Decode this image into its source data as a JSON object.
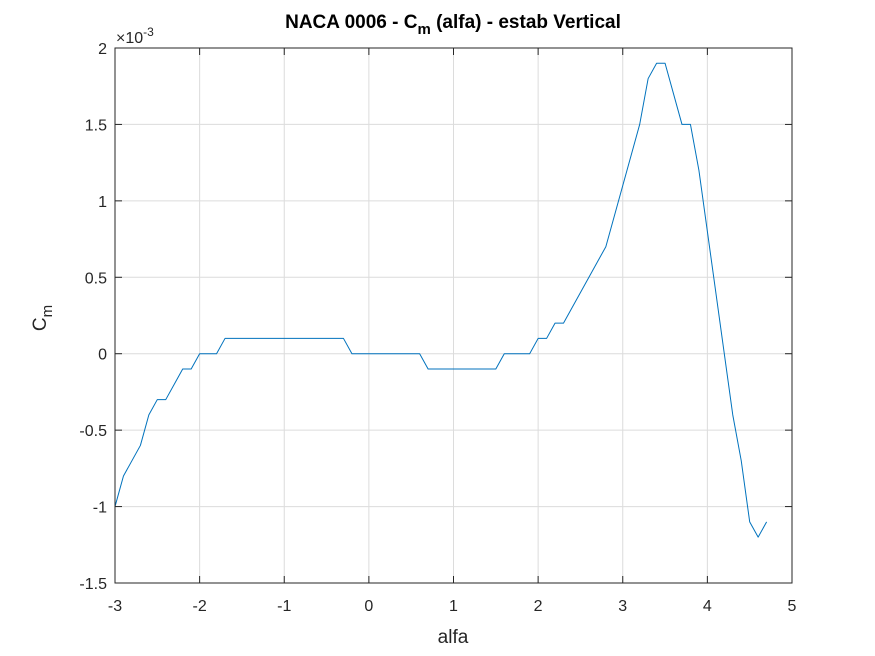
{
  "chart_data": {
    "type": "line",
    "title_main": "NACA 0006 - C",
    "title_sub": "m",
    "title_rest": " (alfa) - estab Vertical",
    "xlabel": "alfa",
    "ylabel_main": "C",
    "ylabel_sub": "m",
    "exponent_base": "×10",
    "exponent_power": "-3",
    "xlim": [
      -3,
      5
    ],
    "ylim": [
      -1.5,
      2
    ],
    "xticks": [
      "-3",
      "-2",
      "-1",
      "0",
      "1",
      "2",
      "3",
      "4",
      "5"
    ],
    "yticks": [
      "-1.5",
      "-1",
      "-0.5",
      "0",
      "0.5",
      "1",
      "1.5",
      "2"
    ],
    "grid": true,
    "series": [
      {
        "name": "Cm",
        "color": "#0072BD",
        "x": [
          -3.0,
          -2.9,
          -2.7,
          -2.6,
          -2.5,
          -2.4,
          -2.2,
          -2.1,
          -2.0,
          -1.8,
          -1.7,
          -0.3,
          -0.2,
          0.6,
          0.7,
          1.5,
          1.6,
          1.9,
          2.0,
          2.1,
          2.2,
          2.3,
          2.8,
          3.2,
          3.3,
          3.4,
          3.5,
          3.7,
          3.8,
          3.9,
          4.3,
          4.4,
          4.5,
          4.6,
          4.7
        ],
        "y": [
          -1.0,
          -0.8,
          -0.6,
          -0.4,
          -0.3,
          -0.3,
          -0.1,
          -0.1,
          0.0,
          0.0,
          0.1,
          0.1,
          0.0,
          0.0,
          -0.1,
          -0.1,
          0.0,
          0.0,
          0.1,
          0.1,
          0.2,
          0.2,
          0.7,
          1.5,
          1.8,
          1.9,
          1.9,
          1.5,
          1.5,
          1.2,
          -0.4,
          -0.7,
          -1.1,
          -1.2,
          -1.1
        ]
      }
    ]
  }
}
